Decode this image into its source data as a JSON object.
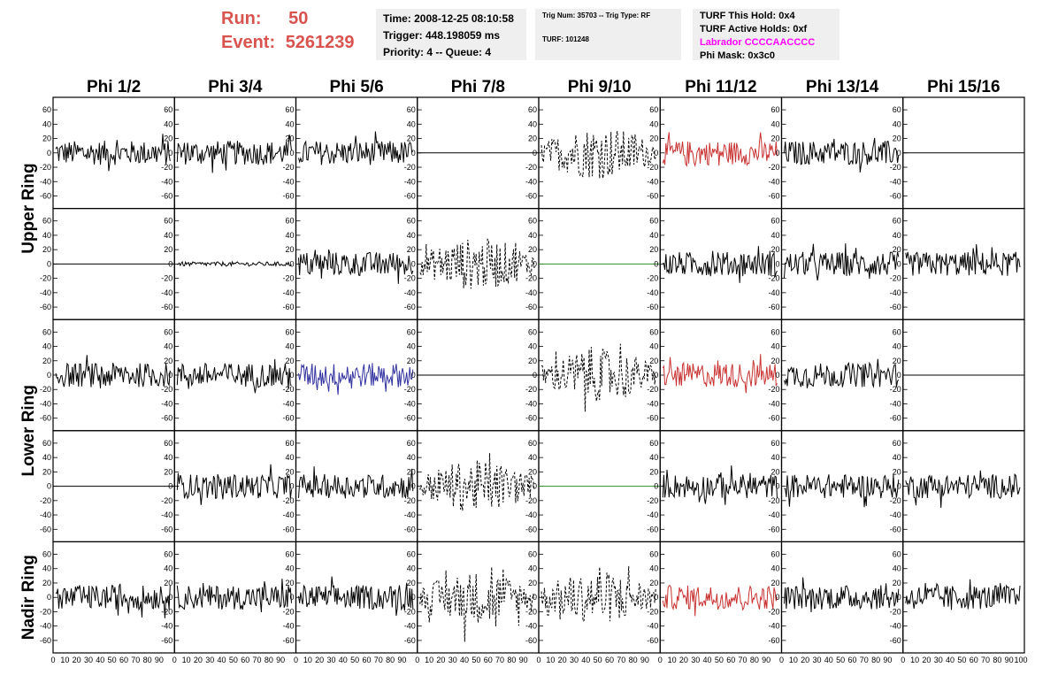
{
  "run": {
    "run_label": "Run:",
    "run_value": "50",
    "event_label": "Event:",
    "event_value": "5261239"
  },
  "info1": {
    "time": "Time: 2008-12-25 08:10:58",
    "trigger": "Trigger: 448.198059 ms",
    "priority": "Priority: 4 -- Queue: 4"
  },
  "info2": {
    "trig": "Trig Num: 35703 -- Trig Type: RF",
    "turf": "TURF: 101248"
  },
  "info3": {
    "this_hold": "TURF This Hold: 0x4",
    "active_holds": "TURF Active Holds: 0xf",
    "labrador": "Labrador CCCCAACCCC",
    "phi_mask": "Phi Mask: 0x3c0"
  },
  "columns": [
    "Phi 1/2",
    "Phi 3/4",
    "Phi 5/6",
    "Phi 7/8",
    "Phi 9/10",
    "Phi 11/12",
    "Phi 13/14",
    "Phi 15/16"
  ],
  "row_groups": [
    "Upper Ring",
    "Lower Ring",
    "Nadir Ring"
  ],
  "colors": {
    "header_red": "#d9534f",
    "magenta": "#ff00ff",
    "red_trace": "#c83232",
    "blue_trace": "#3232a0",
    "green_trace": "#2e8b2e",
    "panel_bg": "#efefef"
  },
  "chart_data": {
    "type": "line",
    "xlim": [
      0,
      100
    ],
    "ylim": [
      -70,
      70
    ],
    "y_ticks": [
      -60,
      -40,
      -20,
      0,
      20,
      40,
      60
    ],
    "y_tick_labels": [
      "-60",
      "-40",
      "-20",
      "0",
      "20",
      "40",
      "60"
    ],
    "x_tick_labels": [
      "0",
      "10",
      "20",
      "30",
      "40",
      "50",
      "60",
      "70",
      "80",
      "90",
      "100"
    ],
    "panels": [
      [
        "noise",
        "noise",
        "noise",
        "flat",
        "dashed",
        "red",
        "noise",
        "flat"
      ],
      [
        "flat",
        "small",
        "noise",
        "dashed",
        "green",
        "noise",
        "noise",
        "noise"
      ],
      [
        "noise",
        "noise",
        "blue",
        "flat",
        "dashed",
        "red",
        "noise",
        "flat"
      ],
      [
        "flat",
        "noise",
        "noise",
        "dashed",
        "green",
        "noise",
        "noise",
        "noise"
      ],
      [
        "noise",
        "noise",
        "noise",
        "dashed",
        "dashed",
        "red",
        "noise",
        "noise"
      ]
    ]
  }
}
